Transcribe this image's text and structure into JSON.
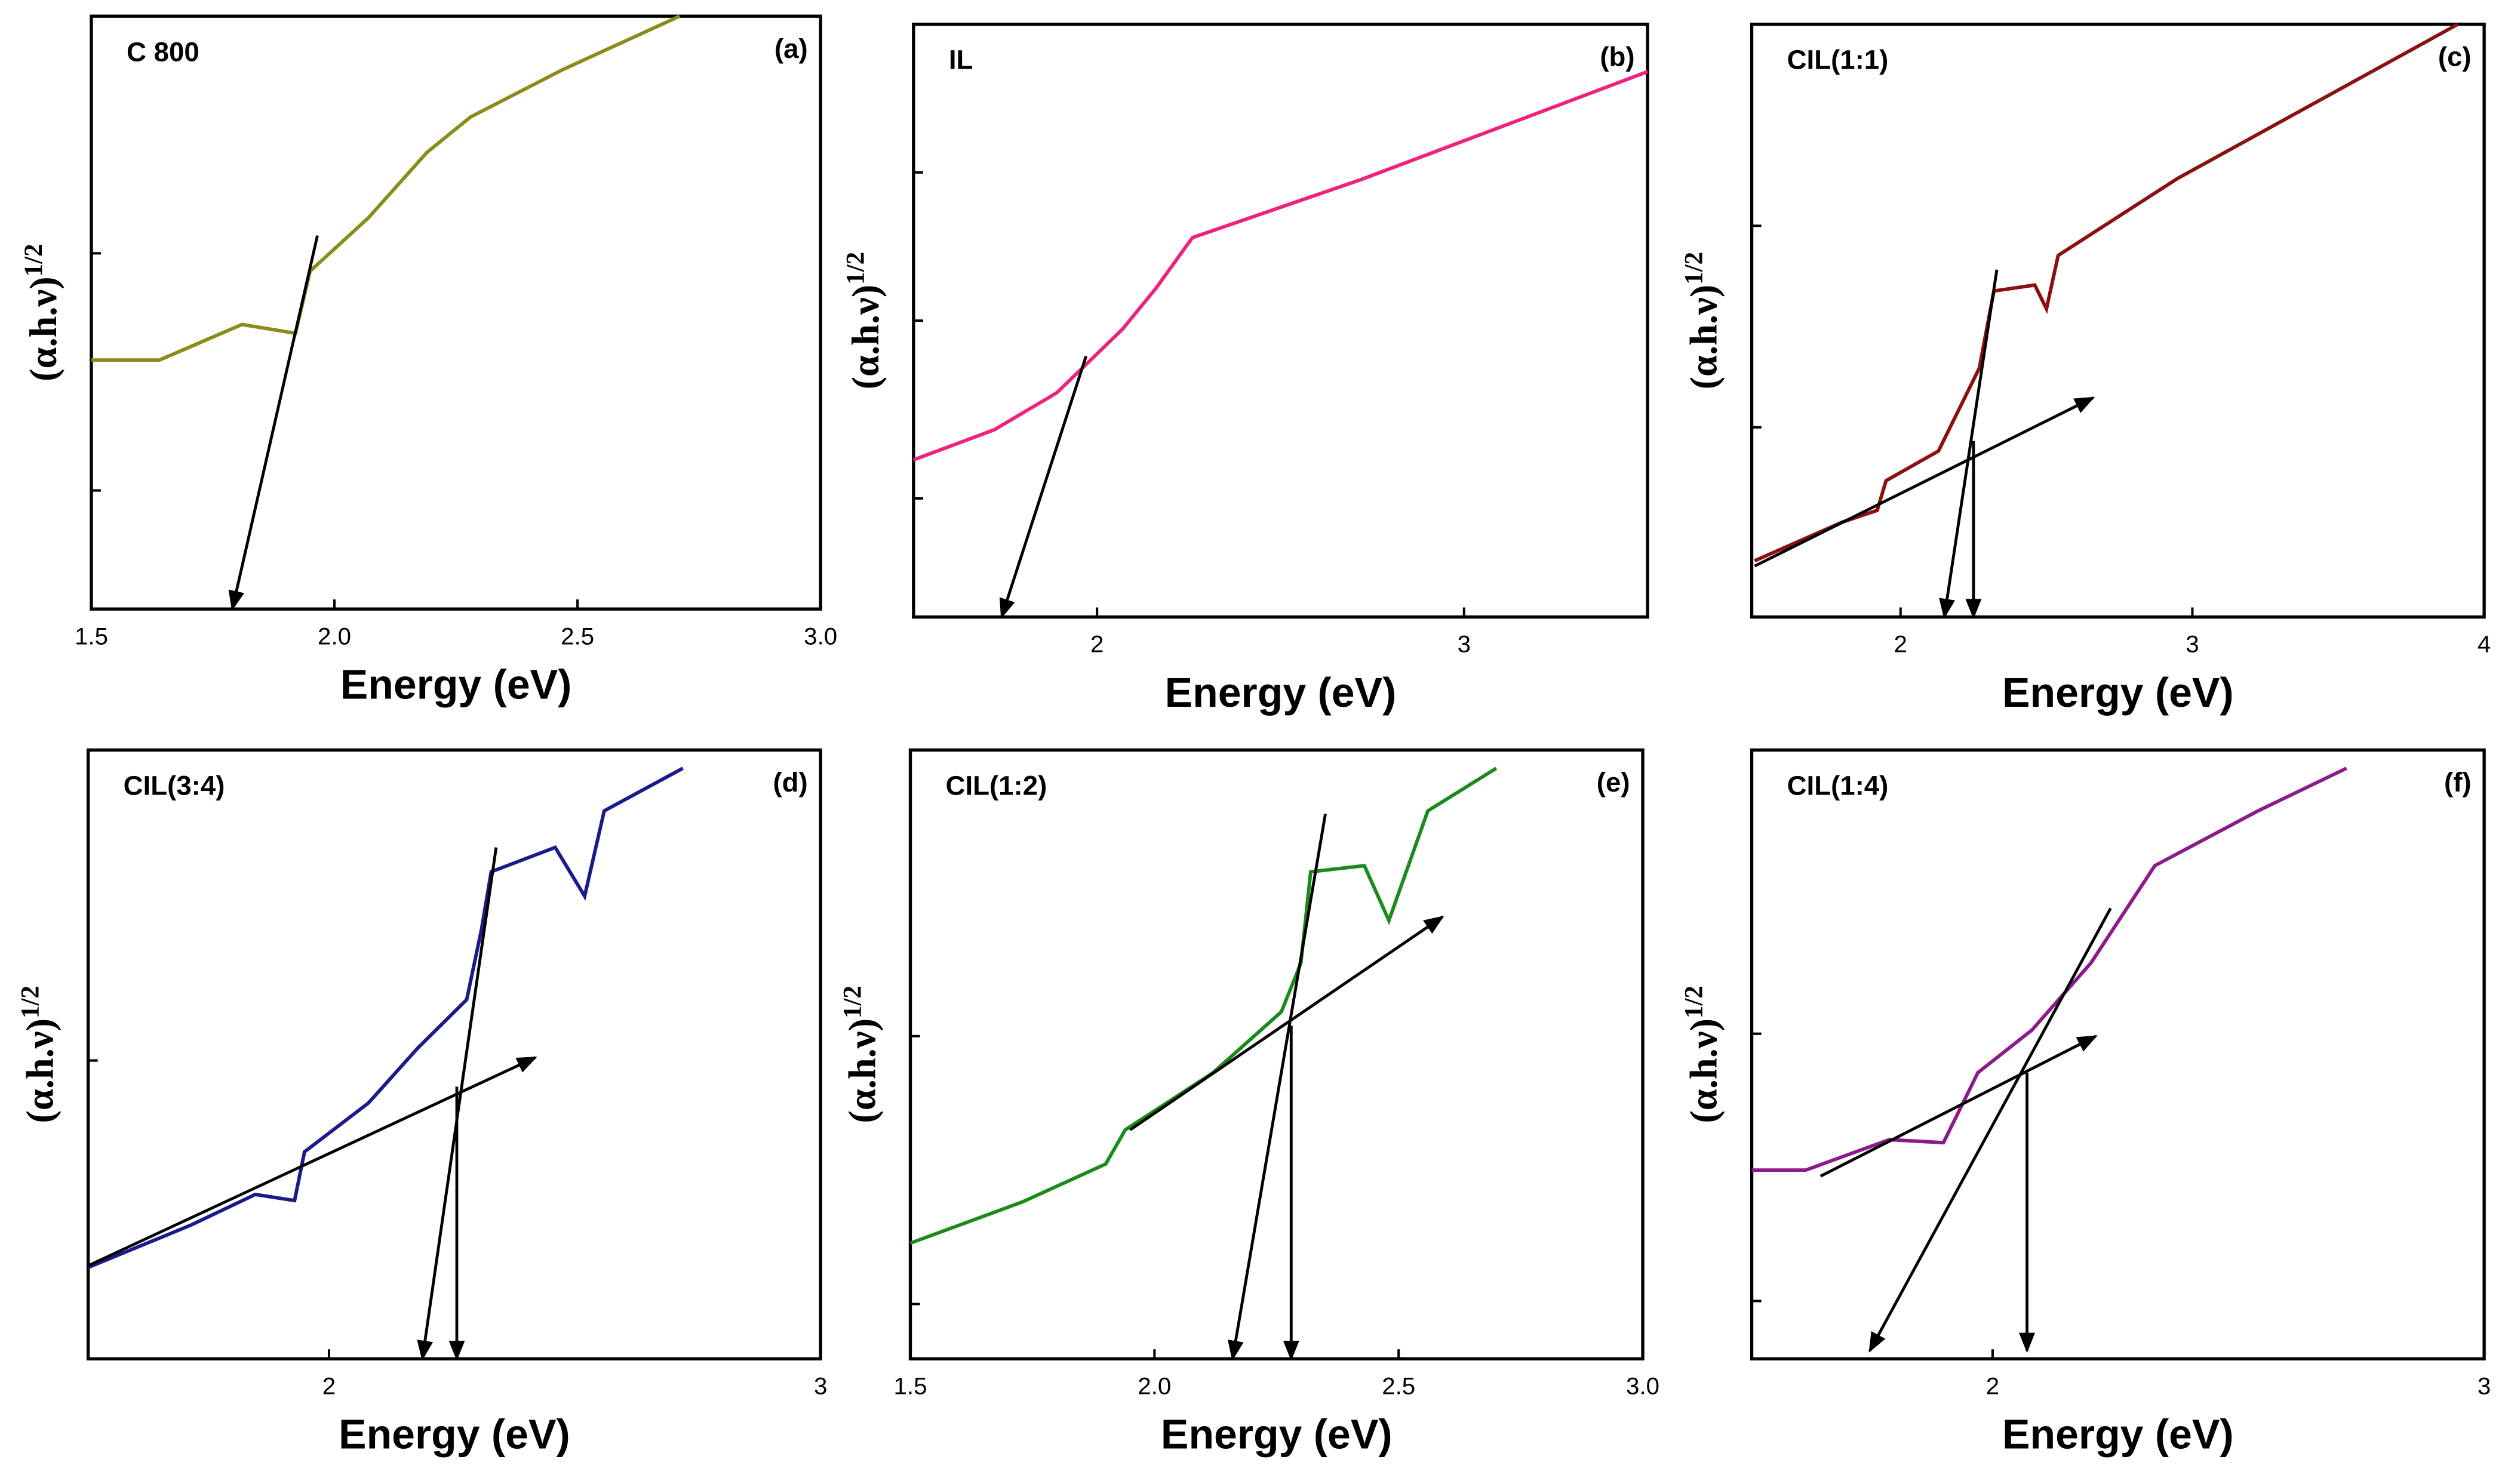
{
  "chart_data": [
    {
      "type": "line",
      "title": "C 800",
      "panel_label": "(a)",
      "xlabel": "Energy (eV)",
      "ylabel": "(α.h.ν)",
      "ylabel_sup": "1/2",
      "xlim": [
        1.5,
        3.0
      ],
      "ylim": [
        0,
        100
      ],
      "xticks": [
        1.5,
        {
          "value": 2,
          "label": "2.0"
        },
        2.5,
        {
          "value": 3,
          "label": "3.0"
        }
      ],
      "yticks": [
        20,
        60
      ],
      "color": "#8b8b1a",
      "x": [
        1.5,
        1.64,
        1.81,
        1.92,
        1.95,
        2.07,
        2.19,
        2.28,
        2.47,
        2.71
      ],
      "values": [
        42,
        42,
        48,
        46.5,
        57,
        66,
        77,
        83,
        91,
        100
      ],
      "arrows": [
        {
          "x": [
            1.965,
            1.79
          ],
          "y": [
            63,
            0
          ]
        }
      ]
    },
    {
      "type": "line",
      "title": "IL",
      "panel_label": "(b)",
      "xlabel": "Energy (eV)",
      "ylabel": "(α.h.ν)",
      "ylabel_sup": "1/2",
      "xlim": [
        1.5,
        3.5
      ],
      "ylim": [
        0,
        100
      ],
      "xticks": [
        2,
        3
      ],
      "yticks": [
        20,
        50,
        75
      ],
      "color": "#f0207f",
      "x": [
        1.5,
        1.72,
        1.89,
        2.07,
        2.16,
        2.26,
        2.72,
        3.5
      ],
      "values": [
        26.5,
        31.6,
        37.8,
        48.6,
        55.4,
        64,
        73.8,
        92
      ],
      "arrows": [
        {
          "x": [
            1.97,
            1.74
          ],
          "y": [
            44,
            0
          ]
        }
      ]
    },
    {
      "type": "line",
      "title": "CIL(1:1)",
      "panel_label": "(c)",
      "xlabel": "Energy (eV)",
      "ylabel": "(α.h.ν)",
      "ylabel_sup": "1/2",
      "xlim": [
        1.49,
        4
      ],
      "ylim": [
        0,
        100
      ],
      "xticks": [
        2,
        3,
        4
      ],
      "yticks": [
        32,
        66
      ],
      "color": "#8b1010",
      "x": [
        1.5,
        1.8,
        1.92,
        1.95,
        2.13,
        2.27,
        2.32,
        2.46,
        2.5,
        2.54,
        2.95,
        3.91
      ],
      "values": [
        9.5,
        16,
        18,
        23,
        28,
        42,
        55,
        56,
        52,
        61,
        74,
        100
      ],
      "arrows": [
        {
          "x": [
            1.5,
            2.66
          ],
          "y": [
            8.6,
            37
          ]
        },
        {
          "x": [
            2.33,
            2.15
          ],
          "y": [
            58.6,
            0
          ]
        },
        {
          "x": [
            2.25,
            2.25
          ],
          "y": [
            29.7,
            0
          ]
        }
      ]
    },
    {
      "type": "line",
      "title": "CIL(3:4)",
      "panel_label": "(d)",
      "xlabel": "Energy (eV)",
      "ylabel": "(α.h.ν)",
      "ylabel_sup": "1/2",
      "xlim": [
        1.51,
        3
      ],
      "ylim": [
        0,
        100
      ],
      "xticks": [
        2,
        3
      ],
      "yticks": [
        49
      ],
      "color": "#1a1a8b",
      "x": [
        1.51,
        1.72,
        1.85,
        1.93,
        1.95,
        2.08,
        2.18,
        2.28,
        2.31,
        2.33,
        2.46,
        2.52,
        2.56,
        2.72
      ],
      "values": [
        15,
        22,
        27,
        26,
        34,
        42,
        51,
        59,
        70.5,
        80,
        84,
        76,
        90,
        97
      ],
      "arrows": [
        {
          "x": [
            1.51,
            2.42
          ],
          "y": [
            15.3,
            49.5
          ]
        },
        {
          "x": [
            2.34,
            2.19
          ],
          "y": [
            84,
            0
          ]
        },
        {
          "x": [
            2.26,
            2.26
          ],
          "y": [
            44.7,
            0
          ]
        }
      ]
    },
    {
      "type": "line",
      "title": "CIL(1:2)",
      "panel_label": "(e)",
      "xlabel": "Energy (eV)",
      "ylabel": "(α.h.ν)",
      "ylabel_sup": "1/2",
      "xlim": [
        1.5,
        3.0
      ],
      "ylim": [
        0,
        100
      ],
      "xticks": [
        1.5,
        {
          "value": 2,
          "label": "2.0"
        },
        2.5,
        {
          "value": 3,
          "label": "3.0"
        }
      ],
      "yticks": [
        9,
        53
      ],
      "color": "#1a8b1a",
      "x": [
        1.5,
        1.73,
        1.9,
        1.94,
        2.12,
        2.26,
        2.3,
        2.32,
        2.43,
        2.48,
        2.56,
        2.7
      ],
      "values": [
        19,
        25.8,
        32,
        37.6,
        47,
        57,
        65,
        80,
        81,
        72,
        90,
        97
      ],
      "arrows": [
        {
          "x": [
            1.95,
            2.59
          ],
          "y": [
            37.6,
            72.6
          ]
        },
        {
          "x": [
            2.35,
            2.16
          ],
          "y": [
            89.5,
            0
          ]
        },
        {
          "x": [
            2.28,
            2.28
          ],
          "y": [
            54.7,
            0
          ]
        }
      ]
    },
    {
      "type": "line",
      "title": "CIL(1:4)",
      "panel_label": "(f)",
      "xlabel": "Energy (eV)",
      "ylabel": "(α.h.ν)",
      "ylabel_sup": "1/2",
      "xlim": [
        1.51,
        3
      ],
      "ylim": [
        0,
        100
      ],
      "xticks": [
        2,
        3
      ],
      "yticks": [
        9.5,
        53.4
      ],
      "color": "#8b1a8b",
      "x": [
        1.51,
        1.62,
        1.79,
        1.9,
        1.97,
        2.08,
        2.2,
        2.33,
        2.54,
        2.72
      ],
      "values": [
        31,
        31,
        36,
        35.5,
        47,
        54,
        65,
        81,
        90,
        97
      ],
      "arrows": [
        {
          "x": [
            1.65,
            2.21
          ],
          "y": [
            30,
            53
          ]
        },
        {
          "x": [
            2.24,
            1.75
          ],
          "y": [
            74,
            1.3
          ]
        },
        {
          "x": [
            2.07,
            2.07
          ],
          "y": [
            47,
            1.3
          ]
        }
      ]
    }
  ]
}
